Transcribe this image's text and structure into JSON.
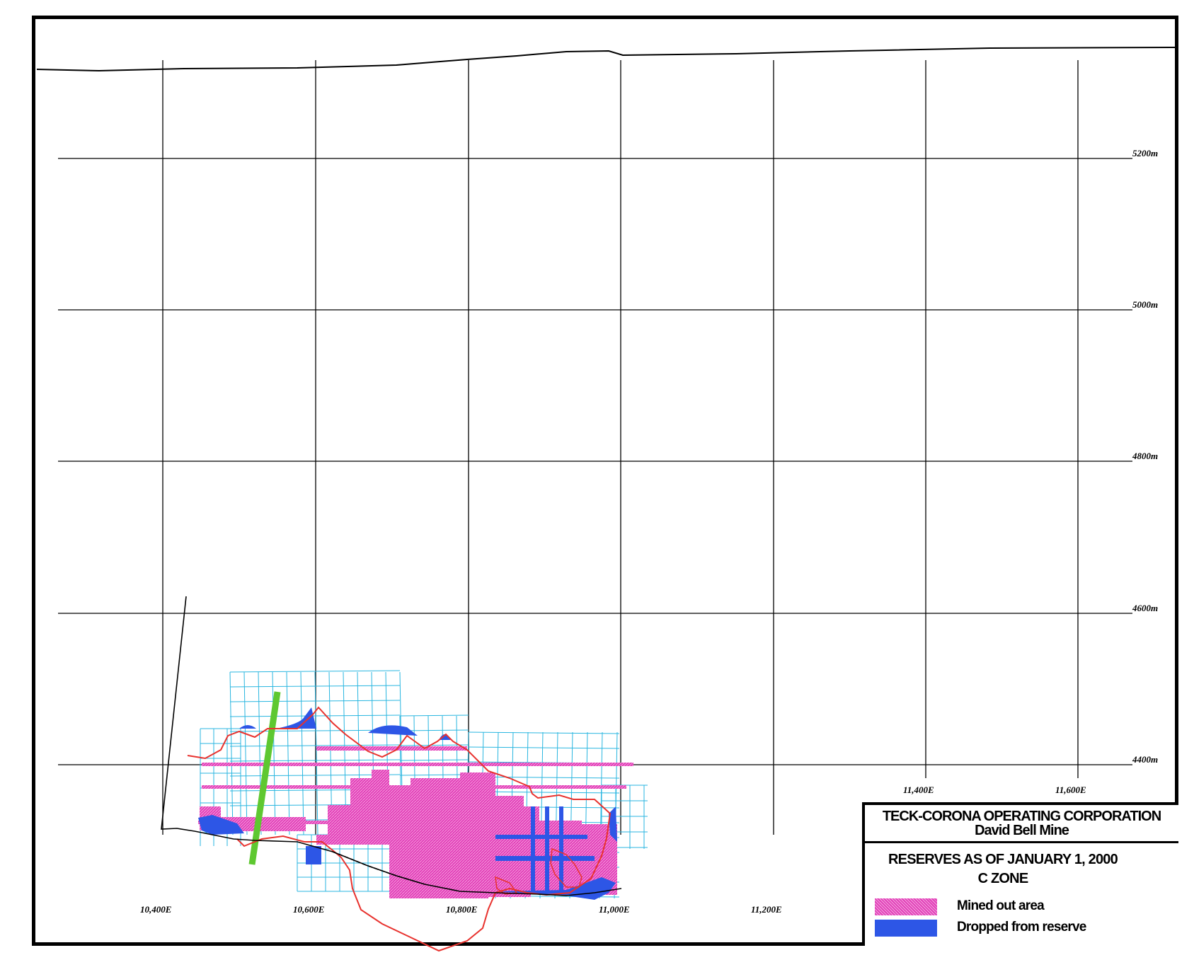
{
  "map": {
    "easting_labels": [
      "10,400E",
      "10,600E",
      "10,800E",
      "11,000E",
      "11,200E",
      "11,400E",
      "11,600E"
    ],
    "elevation_labels": [
      "5200m",
      "5000m",
      "4800m",
      "4600m",
      "4400m"
    ]
  },
  "title_block": {
    "company": "TECK-CORONA OPERATING CORPORATION",
    "mine": "David Bell Mine",
    "reserves_line": "RESERVES AS OF JANUARY 1, 2000",
    "zone": "C ZONE"
  },
  "legend": {
    "mined_out": "Mined out area",
    "dropped": "Dropped from reserve"
  },
  "colors": {
    "mined_out": "#e23fb8",
    "dropped": "#2d56e6",
    "block_grid": "#29b6e0",
    "outline": "#e8322e",
    "fault": "#5ec831"
  }
}
